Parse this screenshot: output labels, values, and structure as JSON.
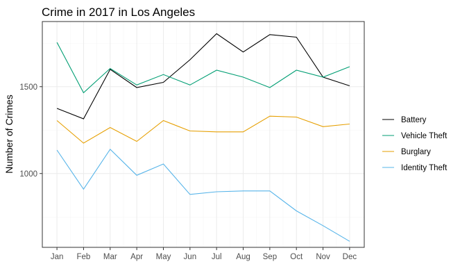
{
  "chart_data": {
    "type": "line",
    "title": "Crime in 2017 in Los Angeles",
    "xlabel": "",
    "ylabel": "Number of Crimes",
    "categories": [
      "Jan",
      "Feb",
      "Mar",
      "Apr",
      "May",
      "Jun",
      "Jul",
      "Aug",
      "Sep",
      "Oct",
      "Nov",
      "Dec"
    ],
    "ylim": [
      575,
      1875
    ],
    "y_major_ticks": [
      1000,
      1500
    ],
    "y_minor_ticks": [
      750,
      1250,
      1750
    ],
    "grid": true,
    "legend_position": "right",
    "series": [
      {
        "name": "Battery",
        "color": "#000000",
        "values": [
          1375,
          1315,
          1600,
          1495,
          1525,
          1655,
          1805,
          1700,
          1800,
          1785,
          1555,
          1505
        ]
      },
      {
        "name": "Vehicle Theft",
        "color": "#009E73",
        "values": [
          1755,
          1465,
          1605,
          1510,
          1570,
          1510,
          1595,
          1555,
          1495,
          1595,
          1555,
          1615
        ]
      },
      {
        "name": "Burglary",
        "color": "#E69F00",
        "values": [
          1305,
          1175,
          1265,
          1185,
          1305,
          1245,
          1240,
          1240,
          1330,
          1325,
          1270,
          1285
        ]
      },
      {
        "name": "Identity Theft",
        "color": "#56B4E9",
        "values": [
          1135,
          910,
          1140,
          990,
          1055,
          880,
          895,
          900,
          900,
          785,
          700,
          610
        ]
      }
    ]
  }
}
